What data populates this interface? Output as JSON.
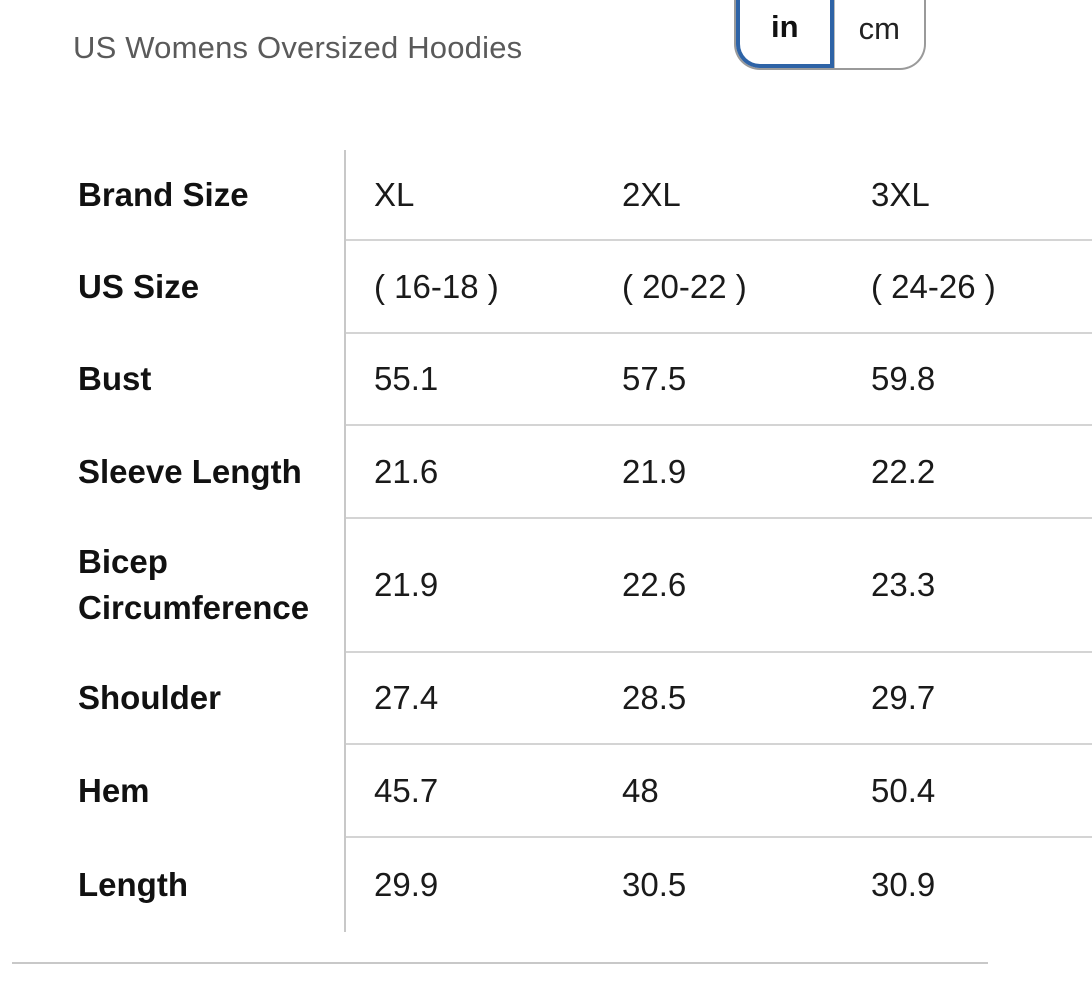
{
  "header": {
    "subtitle": "US Womens Oversized Hoodies"
  },
  "unit_toggle": {
    "options": [
      {
        "label": "in",
        "selected": true
      },
      {
        "label": "cm",
        "selected": false
      }
    ],
    "accent_color": "#2e63a6"
  },
  "size_table": {
    "rows": [
      {
        "label": "Brand Size",
        "values": [
          "XL",
          "2XL",
          "3XL"
        ]
      },
      {
        "label": "US Size",
        "values": [
          "( 16-18 )",
          "( 20-22 )",
          "( 24-26 )"
        ]
      },
      {
        "label": "Bust",
        "values": [
          "55.1",
          "57.5",
          "59.8"
        ]
      },
      {
        "label": "Sleeve Length",
        "values": [
          "21.6",
          "21.9",
          "22.2"
        ]
      },
      {
        "label": "Bicep Circumference",
        "values": [
          "21.9",
          "22.6",
          "23.3"
        ]
      },
      {
        "label": "Shoulder",
        "values": [
          "27.4",
          "28.5",
          "29.7"
        ]
      },
      {
        "label": "Hem",
        "values": [
          "45.7",
          "48",
          "50.4"
        ]
      },
      {
        "label": "Length",
        "values": [
          "29.9",
          "30.5",
          "30.9"
        ]
      }
    ]
  }
}
